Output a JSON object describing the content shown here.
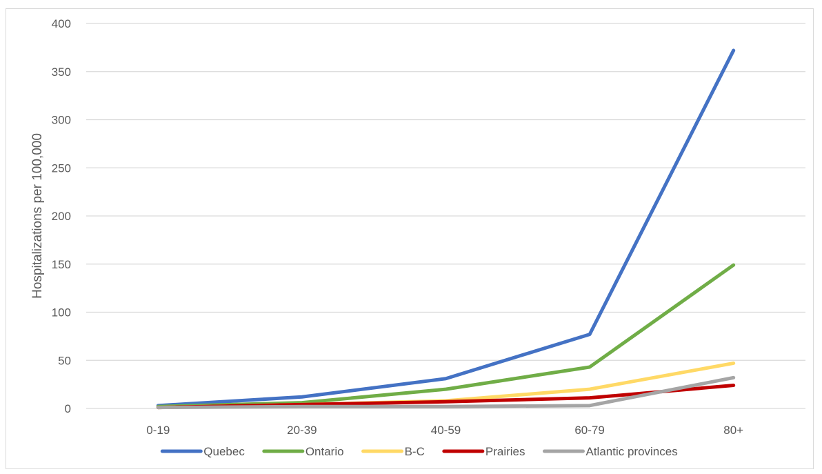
{
  "chart_data": {
    "type": "line",
    "title": "",
    "xlabel": "",
    "ylabel": "Hospitalizations per 100,000",
    "categories": [
      "0-19",
      "20-39",
      "40-59",
      "60-79",
      "80+"
    ],
    "ylim": [
      0,
      400
    ],
    "yticks": [
      0,
      50,
      100,
      150,
      200,
      250,
      300,
      350,
      400
    ],
    "grid": true,
    "legend_position": "bottom",
    "series": [
      {
        "name": "Quebec",
        "color": "#4472c4",
        "values": [
          3,
          12,
          31,
          77,
          372
        ]
      },
      {
        "name": "Ontario",
        "color": "#70ad47",
        "values": [
          2,
          6,
          20,
          43,
          149
        ]
      },
      {
        "name": "B-C",
        "color": "#ffd966",
        "values": [
          1,
          4,
          8,
          20,
          47
        ]
      },
      {
        "name": "Prairies",
        "color": "#c00000",
        "values": [
          1,
          4,
          7,
          11,
          24
        ]
      },
      {
        "name": "Atlantic provinces",
        "color": "#a5a5a5",
        "values": [
          1,
          2,
          2,
          3,
          32
        ]
      }
    ]
  }
}
